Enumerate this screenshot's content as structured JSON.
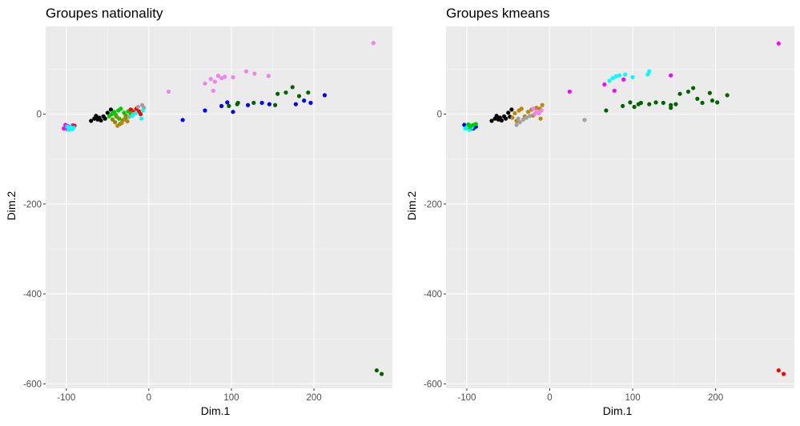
{
  "colors": {
    "panel_bg": "#EBEBEB",
    "grid_major": "#FFFFFF",
    "black": "#000000",
    "magenta": "#FF00FF",
    "cyan": "#00FFFF",
    "green": "#00CD00",
    "olive": "#8B8B00",
    "goldenrod": "#B8860B",
    "red": "#FF0000",
    "gray": "#A0A0A0",
    "violet": "#EE82EE",
    "blue": "#0000FF",
    "darkgreen": "#006400"
  },
  "chart_data": [
    {
      "type": "scatter",
      "title": "Groupes nationality",
      "xlabel": "Dim.1",
      "ylabel": "Dim.2",
      "xlim": [
        -125,
        295
      ],
      "ylim": [
        -610,
        195
      ],
      "xticks": [
        -100,
        0,
        100,
        200
      ],
      "yticks": [
        0,
        -200,
        -400,
        -600
      ],
      "points": [
        {
          "x": -103,
          "y": -32,
          "c": "magenta"
        },
        {
          "x": -101,
          "y": -30,
          "c": "magenta"
        },
        {
          "x": -99,
          "y": -33,
          "c": "magenta"
        },
        {
          "x": -98,
          "y": -27,
          "c": "magenta"
        },
        {
          "x": -96,
          "y": -31,
          "c": "magenta"
        },
        {
          "x": -92,
          "y": -25,
          "c": "magenta"
        },
        {
          "x": -101,
          "y": -24,
          "c": "magenta"
        },
        {
          "x": -94,
          "y": -28,
          "c": "red"
        },
        {
          "x": -90,
          "y": -26,
          "c": "red"
        },
        {
          "x": -97,
          "y": -35,
          "c": "cyan"
        },
        {
          "x": -93,
          "y": -34,
          "c": "cyan"
        },
        {
          "x": -95,
          "y": -29,
          "c": "cyan"
        },
        {
          "x": -91,
          "y": -30,
          "c": "cyan"
        },
        {
          "x": -99,
          "y": -28,
          "c": "cyan"
        },
        {
          "x": -70,
          "y": -15,
          "c": "black"
        },
        {
          "x": -66,
          "y": -10,
          "c": "black"
        },
        {
          "x": -62,
          "y": -12,
          "c": "black"
        },
        {
          "x": -60,
          "y": -8,
          "c": "black"
        },
        {
          "x": -58,
          "y": -14,
          "c": "black"
        },
        {
          "x": -55,
          "y": -5,
          "c": "black"
        },
        {
          "x": -53,
          "y": -10,
          "c": "black"
        },
        {
          "x": -50,
          "y": 3,
          "c": "black"
        },
        {
          "x": -46,
          "y": 10,
          "c": "black"
        },
        {
          "x": -64,
          "y": -4,
          "c": "black"
        },
        {
          "x": -48,
          "y": -5,
          "c": "green"
        },
        {
          "x": -45,
          "y": 0,
          "c": "green"
        },
        {
          "x": -42,
          "y": 5,
          "c": "green"
        },
        {
          "x": -40,
          "y": -2,
          "c": "green"
        },
        {
          "x": -37,
          "y": 8,
          "c": "green"
        },
        {
          "x": -34,
          "y": 12,
          "c": "green"
        },
        {
          "x": -30,
          "y": 3,
          "c": "green"
        },
        {
          "x": -28,
          "y": -8,
          "c": "green"
        },
        {
          "x": -25,
          "y": 6,
          "c": "green"
        },
        {
          "x": -22,
          "y": 0,
          "c": "green"
        },
        {
          "x": -36,
          "y": -10,
          "c": "green"
        },
        {
          "x": -44,
          "y": -12,
          "c": "olive"
        },
        {
          "x": -41,
          "y": -18,
          "c": "olive"
        },
        {
          "x": -39,
          "y": -6,
          "c": "olive"
        },
        {
          "x": -35,
          "y": -22,
          "c": "olive"
        },
        {
          "x": -32,
          "y": -14,
          "c": "olive"
        },
        {
          "x": -28,
          "y": -3,
          "c": "olive"
        },
        {
          "x": -38,
          "y": -26,
          "c": "goldenrod"
        },
        {
          "x": -33,
          "y": -20,
          "c": "goldenrod"
        },
        {
          "x": -30,
          "y": -12,
          "c": "goldenrod"
        },
        {
          "x": -26,
          "y": -16,
          "c": "goldenrod"
        },
        {
          "x": -20,
          "y": 8,
          "c": "goldenrod"
        },
        {
          "x": -22,
          "y": 10,
          "c": "red"
        },
        {
          "x": -18,
          "y": 4,
          "c": "red"
        },
        {
          "x": -15,
          "y": 12,
          "c": "red"
        },
        {
          "x": -12,
          "y": 6,
          "c": "red"
        },
        {
          "x": -10,
          "y": 0,
          "c": "red"
        },
        {
          "x": -24,
          "y": -6,
          "c": "gray"
        },
        {
          "x": -19,
          "y": 0,
          "c": "gray"
        },
        {
          "x": -13,
          "y": 16,
          "c": "gray"
        },
        {
          "x": -8,
          "y": 20,
          "c": "gray"
        },
        {
          "x": -6,
          "y": 14,
          "c": "gray"
        },
        {
          "x": -20,
          "y": -4,
          "c": "cyan"
        },
        {
          "x": -16,
          "y": 2,
          "c": "cyan"
        },
        {
          "x": -9,
          "y": -10,
          "c": "cyan"
        },
        {
          "x": -7,
          "y": 8,
          "c": "cyan"
        },
        {
          "x": 24,
          "y": 50,
          "c": "violet"
        },
        {
          "x": 68,
          "y": 68,
          "c": "violet"
        },
        {
          "x": 75,
          "y": 78,
          "c": "violet"
        },
        {
          "x": 80,
          "y": 72,
          "c": "violet"
        },
        {
          "x": 84,
          "y": 85,
          "c": "violet"
        },
        {
          "x": 88,
          "y": 80,
          "c": "violet"
        },
        {
          "x": 92,
          "y": 83,
          "c": "violet"
        },
        {
          "x": 102,
          "y": 82,
          "c": "violet"
        },
        {
          "x": 118,
          "y": 95,
          "c": "violet"
        },
        {
          "x": 128,
          "y": 90,
          "c": "violet"
        },
        {
          "x": 145,
          "y": 85,
          "c": "violet"
        },
        {
          "x": 78,
          "y": 52,
          "c": "violet"
        },
        {
          "x": 272,
          "y": 158,
          "c": "violet"
        },
        {
          "x": 41,
          "y": -13,
          "c": "blue"
        },
        {
          "x": 68,
          "y": 8,
          "c": "blue"
        },
        {
          "x": 88,
          "y": 18,
          "c": "blue"
        },
        {
          "x": 95,
          "y": 26,
          "c": "blue"
        },
        {
          "x": 102,
          "y": 5,
          "c": "blue"
        },
        {
          "x": 120,
          "y": 20,
          "c": "blue"
        },
        {
          "x": 137,
          "y": 25,
          "c": "blue"
        },
        {
          "x": 146,
          "y": 22,
          "c": "blue"
        },
        {
          "x": 178,
          "y": 22,
          "c": "blue"
        },
        {
          "x": 188,
          "y": 30,
          "c": "blue"
        },
        {
          "x": 196,
          "y": 25,
          "c": "blue"
        },
        {
          "x": 213,
          "y": 42,
          "c": "blue"
        },
        {
          "x": 97,
          "y": 18,
          "c": "darkgreen"
        },
        {
          "x": 107,
          "y": 22,
          "c": "darkgreen"
        },
        {
          "x": 108,
          "y": 25,
          "c": "darkgreen"
        },
        {
          "x": 127,
          "y": 25,
          "c": "darkgreen"
        },
        {
          "x": 153,
          "y": 20,
          "c": "darkgreen"
        },
        {
          "x": 156,
          "y": 45,
          "c": "darkgreen"
        },
        {
          "x": 166,
          "y": 48,
          "c": "darkgreen"
        },
        {
          "x": 174,
          "y": 60,
          "c": "darkgreen"
        },
        {
          "x": 182,
          "y": 40,
          "c": "darkgreen"
        },
        {
          "x": 193,
          "y": 48,
          "c": "darkgreen"
        },
        {
          "x": 276,
          "y": -570,
          "c": "darkgreen"
        },
        {
          "x": 282,
          "y": -578,
          "c": "darkgreen"
        }
      ]
    },
    {
      "type": "scatter",
      "title": "Groupes kmeans",
      "xlabel": "Dim.1",
      "ylabel": "Dim.2",
      "xlim": [
        -125,
        295
      ],
      "ylim": [
        -610,
        195
      ],
      "xticks": [
        -100,
        0,
        100,
        200
      ],
      "yticks": [
        0,
        -200,
        -400,
        -600
      ],
      "points": [
        {
          "x": -103,
          "y": -24,
          "c": "blue"
        },
        {
          "x": -100,
          "y": -30,
          "c": "blue"
        },
        {
          "x": -96,
          "y": -33,
          "c": "blue"
        },
        {
          "x": -92,
          "y": -32,
          "c": "blue"
        },
        {
          "x": -89,
          "y": -28,
          "c": "blue"
        },
        {
          "x": -102,
          "y": -32,
          "c": "cyan"
        },
        {
          "x": -99,
          "y": -27,
          "c": "cyan"
        },
        {
          "x": -97,
          "y": -35,
          "c": "cyan"
        },
        {
          "x": -94,
          "y": -30,
          "c": "cyan"
        },
        {
          "x": -93,
          "y": -26,
          "c": "cyan"
        },
        {
          "x": -98,
          "y": -23,
          "c": "green"
        },
        {
          "x": -95,
          "y": -26,
          "c": "green"
        },
        {
          "x": -92,
          "y": -24,
          "c": "green"
        },
        {
          "x": -89,
          "y": -22,
          "c": "green"
        },
        {
          "x": -96,
          "y": -29,
          "c": "green"
        },
        {
          "x": -70,
          "y": -15,
          "c": "black"
        },
        {
          "x": -66,
          "y": -10,
          "c": "black"
        },
        {
          "x": -62,
          "y": -12,
          "c": "black"
        },
        {
          "x": -60,
          "y": -8,
          "c": "black"
        },
        {
          "x": -58,
          "y": -14,
          "c": "black"
        },
        {
          "x": -55,
          "y": -5,
          "c": "black"
        },
        {
          "x": -53,
          "y": -10,
          "c": "black"
        },
        {
          "x": -50,
          "y": 3,
          "c": "black"
        },
        {
          "x": -46,
          "y": 10,
          "c": "black"
        },
        {
          "x": -64,
          "y": -4,
          "c": "black"
        },
        {
          "x": -48,
          "y": -6,
          "c": "black"
        },
        {
          "x": -45,
          "y": -8,
          "c": "goldenrod"
        },
        {
          "x": -42,
          "y": 2,
          "c": "goldenrod"
        },
        {
          "x": -40,
          "y": -15,
          "c": "goldenrod"
        },
        {
          "x": -37,
          "y": 8,
          "c": "goldenrod"
        },
        {
          "x": -34,
          "y": 12,
          "c": "goldenrod"
        },
        {
          "x": -30,
          "y": -5,
          "c": "goldenrod"
        },
        {
          "x": -26,
          "y": 5,
          "c": "goldenrod"
        },
        {
          "x": -22,
          "y": 10,
          "c": "goldenrod"
        },
        {
          "x": -16,
          "y": 14,
          "c": "goldenrod"
        },
        {
          "x": -12,
          "y": 12,
          "c": "goldenrod"
        },
        {
          "x": -9,
          "y": 20,
          "c": "goldenrod"
        },
        {
          "x": -11,
          "y": -10,
          "c": "goldenrod"
        },
        {
          "x": -20,
          "y": -3,
          "c": "goldenrod"
        },
        {
          "x": -40,
          "y": -24,
          "c": "gray"
        },
        {
          "x": -36,
          "y": -18,
          "c": "gray"
        },
        {
          "x": -32,
          "y": -12,
          "c": "gray"
        },
        {
          "x": -28,
          "y": -8,
          "c": "gray"
        },
        {
          "x": -24,
          "y": -4,
          "c": "gray"
        },
        {
          "x": -38,
          "y": -10,
          "c": "gray"
        },
        {
          "x": 42,
          "y": -13,
          "c": "gray"
        },
        {
          "x": -20,
          "y": 12,
          "c": "violet"
        },
        {
          "x": -16,
          "y": 6,
          "c": "violet"
        },
        {
          "x": -13,
          "y": 2,
          "c": "violet"
        },
        {
          "x": -18,
          "y": 0,
          "c": "violet"
        },
        {
          "x": -10,
          "y": 8,
          "c": "violet"
        },
        {
          "x": 24,
          "y": 50,
          "c": "magenta"
        },
        {
          "x": 66,
          "y": 66,
          "c": "magenta"
        },
        {
          "x": 78,
          "y": 52,
          "c": "magenta"
        },
        {
          "x": 89,
          "y": 77,
          "c": "magenta"
        },
        {
          "x": 146,
          "y": 86,
          "c": "magenta"
        },
        {
          "x": 276,
          "y": 157,
          "c": "magenta"
        },
        {
          "x": 72,
          "y": 74,
          "c": "cyan"
        },
        {
          "x": 76,
          "y": 80,
          "c": "cyan"
        },
        {
          "x": 80,
          "y": 84,
          "c": "cyan"
        },
        {
          "x": 84,
          "y": 86,
          "c": "cyan"
        },
        {
          "x": 91,
          "y": 88,
          "c": "cyan"
        },
        {
          "x": 100,
          "y": 82,
          "c": "cyan"
        },
        {
          "x": 120,
          "y": 95,
          "c": "cyan"
        },
        {
          "x": 118,
          "y": 88,
          "c": "cyan"
        },
        {
          "x": 68,
          "y": 8,
          "c": "darkgreen"
        },
        {
          "x": 88,
          "y": 18,
          "c": "darkgreen"
        },
        {
          "x": 97,
          "y": 26,
          "c": "darkgreen"
        },
        {
          "x": 102,
          "y": 16,
          "c": "darkgreen"
        },
        {
          "x": 107,
          "y": 22,
          "c": "darkgreen"
        },
        {
          "x": 110,
          "y": 25,
          "c": "darkgreen"
        },
        {
          "x": 120,
          "y": 22,
          "c": "darkgreen"
        },
        {
          "x": 128,
          "y": 26,
          "c": "darkgreen"
        },
        {
          "x": 137,
          "y": 25,
          "c": "darkgreen"
        },
        {
          "x": 146,
          "y": 14,
          "c": "darkgreen"
        },
        {
          "x": 146,
          "y": 20,
          "c": "darkgreen"
        },
        {
          "x": 152,
          "y": 22,
          "c": "darkgreen"
        },
        {
          "x": 157,
          "y": 45,
          "c": "darkgreen"
        },
        {
          "x": 167,
          "y": 50,
          "c": "darkgreen"
        },
        {
          "x": 173,
          "y": 58,
          "c": "darkgreen"
        },
        {
          "x": 178,
          "y": 34,
          "c": "darkgreen"
        },
        {
          "x": 184,
          "y": 25,
          "c": "darkgreen"
        },
        {
          "x": 193,
          "y": 47,
          "c": "darkgreen"
        },
        {
          "x": 196,
          "y": 30,
          "c": "darkgreen"
        },
        {
          "x": 202,
          "y": 26,
          "c": "darkgreen"
        },
        {
          "x": 214,
          "y": 42,
          "c": "darkgreen"
        },
        {
          "x": 276,
          "y": -570,
          "c": "red"
        },
        {
          "x": 282,
          "y": -578,
          "c": "red"
        }
      ]
    }
  ]
}
